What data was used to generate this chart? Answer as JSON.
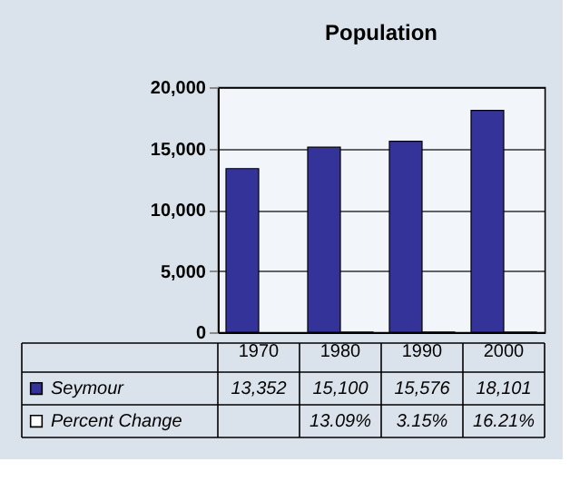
{
  "chart_data": {
    "type": "bar",
    "title": "Population",
    "categories": [
      "1970",
      "1980",
      "1990",
      "2000"
    ],
    "series": [
      {
        "name": "Seymour",
        "color": "#333399",
        "values": [
          13352,
          15100,
          15576,
          18101
        ],
        "value_labels": [
          "13,352",
          "15,100",
          "15,576",
          "18,101"
        ]
      },
      {
        "name": "Percent Change",
        "color": "#ffffff",
        "values": [
          null,
          13.09,
          3.15,
          16.21
        ],
        "value_labels": [
          null,
          "13.09%",
          "3.15%",
          "16.21%"
        ]
      }
    ],
    "ylim": [
      0,
      20000
    ],
    "yticks": [
      0,
      {
        "value": 5000,
        "label": "5,000"
      },
      {
        "value": 10000,
        "label": "10,000"
      },
      {
        "value": 15000,
        "label": "15,000"
      },
      {
        "value": 20000,
        "label": "20,000"
      }
    ],
    "grid": "y",
    "legend": "bottom"
  }
}
